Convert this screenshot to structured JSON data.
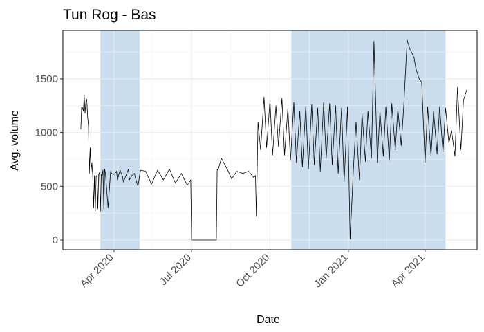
{
  "chart_data": {
    "type": "line",
    "title": "Tun Rog - Bas",
    "xlabel": "Date",
    "ylabel": "Avg. volume",
    "x_ticks": [
      "Apr 2020",
      "Jul 2020",
      "Oct 2020",
      "Jan 2021",
      "Apr 2021"
    ],
    "x_tick_dates": [
      "2020-04-01",
      "2020-07-01",
      "2020-10-01",
      "2021-01-01",
      "2021-04-01"
    ],
    "xlim": [
      "2020-02-01",
      "2021-06-01"
    ],
    "y_ticks": [
      0,
      500,
      1000,
      1500
    ],
    "ylim": [
      -90,
      1950
    ],
    "grid": true,
    "legend": "none",
    "colors": {
      "line": "#000000",
      "band": "#c9ddef",
      "panel_border": "#333333",
      "grid_major": "#ebebeb",
      "grid_minor": "#f3f3f3"
    },
    "shaded_periods": [
      {
        "start": "2020-03-16",
        "end": "2020-05-01"
      },
      {
        "start": "2020-10-26",
        "end": "2021-04-25"
      }
    ],
    "series": [
      {
        "dates": [
          "2020-02-22",
          "2020-02-23",
          "2020-02-24",
          "2020-02-25",
          "2020-02-26",
          "2020-02-27",
          "2020-02-28",
          "2020-02-29",
          "2020-03-01",
          "2020-03-02",
          "2020-03-03",
          "2020-03-04",
          "2020-03-05",
          "2020-03-06",
          "2020-03-07",
          "2020-03-08",
          "2020-03-09",
          "2020-03-10",
          "2020-03-11",
          "2020-03-12",
          "2020-03-13",
          "2020-03-14",
          "2020-03-15",
          "2020-03-16",
          "2020-03-17",
          "2020-03-18",
          "2020-03-19",
          "2020-03-20",
          "2020-03-21",
          "2020-03-22",
          "2020-03-25",
          "2020-03-28",
          "2020-03-29",
          "2020-04-01",
          "2020-04-04",
          "2020-04-05",
          "2020-04-08",
          "2020-04-11",
          "2020-04-12",
          "2020-04-15",
          "2020-04-18",
          "2020-04-19",
          "2020-04-22",
          "2020-04-25",
          "2020-04-26",
          "2020-04-29",
          "2020-05-02",
          "2020-05-08",
          "2020-05-15",
          "2020-05-22",
          "2020-05-29",
          "2020-06-05",
          "2020-06-12",
          "2020-06-19",
          "2020-06-26",
          "2020-06-30",
          "2020-07-01",
          "2020-07-02",
          "2020-07-15",
          "2020-07-30",
          "2020-07-31",
          "2020-08-01",
          "2020-08-05",
          "2020-08-09",
          "2020-08-13",
          "2020-08-17",
          "2020-08-23",
          "2020-08-30",
          "2020-09-06",
          "2020-09-12",
          "2020-09-14",
          "2020-09-15",
          "2020-09-17",
          "2020-09-20",
          "2020-09-24",
          "2020-09-27",
          "2020-10-01",
          "2020-10-04",
          "2020-10-08",
          "2020-10-11",
          "2020-10-15",
          "2020-10-18",
          "2020-10-22",
          "2020-10-25",
          "2020-10-29",
          "2020-11-01",
          "2020-11-05",
          "2020-11-08",
          "2020-11-12",
          "2020-11-15",
          "2020-11-19",
          "2020-11-22",
          "2020-11-26",
          "2020-11-29",
          "2020-12-03",
          "2020-12-06",
          "2020-12-10",
          "2020-12-13",
          "2020-12-17",
          "2020-12-20",
          "2020-12-24",
          "2020-12-27",
          "2020-12-31",
          "2021-01-03",
          "2021-01-07",
          "2021-01-10",
          "2021-01-14",
          "2021-01-17",
          "2021-01-21",
          "2021-01-24",
          "2021-01-28",
          "2021-01-31",
          "2021-02-04",
          "2021-02-07",
          "2021-02-11",
          "2021-02-14",
          "2021-02-18",
          "2021-02-21",
          "2021-02-25",
          "2021-02-28",
          "2021-03-04",
          "2021-03-07",
          "2021-03-11",
          "2021-03-14",
          "2021-03-19",
          "2021-03-21",
          "2021-03-25",
          "2021-03-28",
          "2021-04-01",
          "2021-04-04",
          "2021-04-08",
          "2021-04-11",
          "2021-04-15",
          "2021-04-18",
          "2021-04-22",
          "2021-04-25",
          "2021-04-29",
          "2021-05-02",
          "2021-05-06",
          "2021-05-09",
          "2021-05-13",
          "2021-05-16",
          "2021-05-20"
        ],
        "values": [
          1030,
          1240,
          1230,
          1200,
          1350,
          1180,
          1290,
          1310,
          1150,
          1060,
          620,
          860,
          640,
          720,
          610,
          300,
          600,
          270,
          590,
          600,
          290,
          610,
          630,
          270,
          610,
          600,
          650,
          290,
          660,
          620,
          300,
          640,
          620,
          610,
          640,
          560,
          650,
          590,
          540,
          600,
          660,
          560,
          600,
          620,
          580,
          500,
          650,
          640,
          520,
          650,
          560,
          660,
          530,
          620,
          510,
          560,
          0,
          0,
          0,
          0,
          660,
          650,
          760,
          700,
          640,
          570,
          640,
          620,
          640,
          580,
          600,
          220,
          1100,
          840,
          1330,
          860,
          1300,
          790,
          1250,
          870,
          1320,
          790,
          1230,
          740,
          1280,
          720,
          1200,
          680,
          1250,
          660,
          1260,
          700,
          1230,
          640,
          1280,
          760,
          1270,
          700,
          1250,
          620,
          1230,
          540,
          1240,
          10,
          680,
          1100,
          560,
          1180,
          730,
          1200,
          760,
          1850,
          720,
          1200,
          780,
          1240,
          740,
          1270,
          840,
          1220,
          880,
          1250,
          1860,
          1780,
          1700,
          1600,
          1500,
          1470,
          720,
          1240,
          780,
          1200,
          800,
          1240,
          820,
          1230,
          900,
          1020,
          780,
          1420,
          840,
          1300,
          1400
        ]
      }
    ]
  }
}
